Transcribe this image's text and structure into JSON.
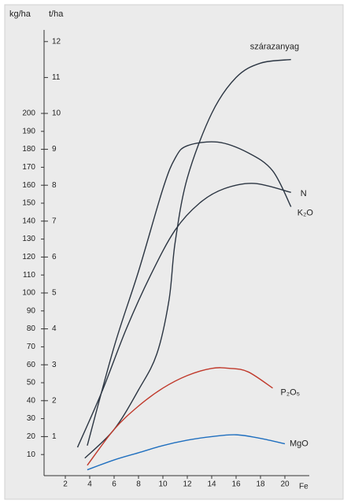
{
  "chart_data": {
    "type": "line",
    "ylabel": "kg/ha",
    "y2label": "t/ha",
    "xlabel": "Fe",
    "xlim": [
      0,
      22
    ],
    "xticks": [
      2,
      4,
      6,
      8,
      10,
      12,
      14,
      16,
      18,
      20
    ],
    "ylim": [
      0,
      250
    ],
    "yticks": [
      10,
      20,
      30,
      40,
      50,
      60,
      70,
      80,
      90,
      100,
      110,
      120,
      130,
      140,
      150,
      160,
      170,
      180,
      190,
      200
    ],
    "y2lim": [
      0,
      12.5
    ],
    "y2ticks": [
      1,
      2,
      3,
      4,
      5,
      6,
      7,
      8,
      9,
      10,
      11,
      12
    ],
    "series": [
      {
        "name": "szárazanyag",
        "color": "#2b3542",
        "axis": "y2",
        "x": [
          3.6,
          6,
          8,
          9.5,
          10.5,
          11,
          12,
          14,
          16,
          18,
          20.5
        ],
        "values": [
          0.4,
          1.2,
          2.3,
          3.3,
          4.8,
          6.4,
          8.2,
          10,
          11,
          11.4,
          11.5
        ]
      },
      {
        "name": "N",
        "color": "#2b3542",
        "x": [
          3,
          5,
          7,
          9,
          11,
          13,
          15,
          17.5,
          20.5
        ],
        "values": [
          14,
          45,
          80,
          110,
          135,
          150,
          158,
          161,
          156
        ]
      },
      {
        "name": "K₂O",
        "color": "#2b3542",
        "x": [
          3.8,
          6,
          8,
          10,
          11,
          12,
          14.5,
          17,
          19,
          20.5
        ],
        "values": [
          15,
          70,
          112,
          158,
          175,
          182,
          184,
          178,
          168,
          148
        ]
      },
      {
        "name": "P₂O₅",
        "color": "#c0392b",
        "x": [
          3.8,
          6,
          8,
          10,
          12,
          14,
          15.5,
          17,
          19
        ],
        "values": [
          4,
          24,
          37,
          47,
          54,
          58,
          58,
          56,
          47
        ]
      },
      {
        "name": "MgO",
        "color": "#1f6fbf",
        "x": [
          3.8,
          6,
          8,
          10,
          12,
          14,
          16,
          18,
          20
        ],
        "values": [
          1.5,
          7,
          11,
          15,
          18,
          20,
          21,
          19,
          16
        ]
      }
    ]
  }
}
